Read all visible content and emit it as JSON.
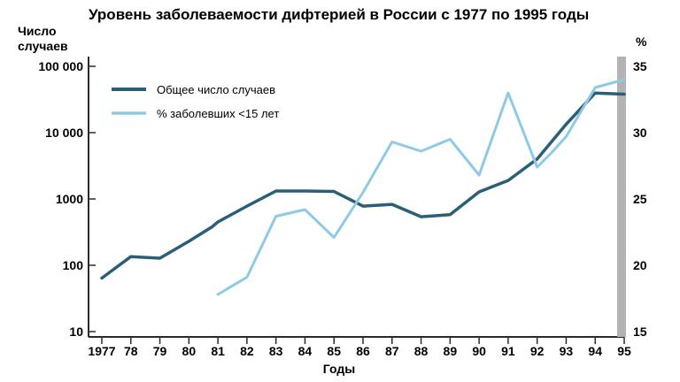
{
  "chart_data": {
    "type": "line",
    "title": "Уровень заболеваемости дифтерией в России с 1977 по 1995 годы",
    "xlabel": "Годы",
    "ylabel_left": "Число\nслучаев",
    "ylabel_right": "%",
    "x_tick_labels": [
      "1977",
      "78",
      "79",
      "80",
      "81",
      "82",
      "83",
      "84",
      "85",
      "86",
      "87",
      "88",
      "89",
      "90",
      "91",
      "92",
      "93",
      "94",
      "95"
    ],
    "xlim": [
      1977,
      1995
    ],
    "y_left": {
      "scale": "log",
      "lim": [
        10,
        100000
      ],
      "ticks": [
        10,
        100,
        1000,
        10000,
        100000
      ],
      "tick_labels": [
        "10",
        "100",
        "1000",
        "10 000",
        "100 000"
      ]
    },
    "y_right": {
      "scale": "linear",
      "lim": [
        15,
        35
      ],
      "ticks": [
        15,
        20,
        25,
        30,
        35
      ],
      "tick_labels": [
        "15",
        "20",
        "25",
        "30",
        "35"
      ]
    },
    "grid": false,
    "legend_position": "top-left",
    "colors": {
      "series_1": "#2b5f78",
      "series_2": "#8ecae6",
      "axis": "#2a2a2a"
    },
    "series": [
      {
        "name": "Общее число случаев",
        "axis": "left",
        "x": [
          1977,
          1978,
          1979,
          1980,
          1980.8,
          1981,
          1982,
          1983,
          1984,
          1985,
          1986,
          1987,
          1988,
          1989,
          1990,
          1991,
          1992,
          1993,
          1994,
          1995
        ],
        "y": [
          64,
          135,
          128,
          230,
          380,
          450,
          780,
          1320,
          1320,
          1300,
          780,
          830,
          540,
          580,
          1280,
          1900,
          4000,
          13400,
          39600,
          38000
        ]
      },
      {
        "name": "% заболевших <15 лет",
        "axis": "right",
        "x": [
          1981,
          1982,
          1983,
          1984,
          1985,
          1986,
          1987,
          1988,
          1989,
          1990,
          1991,
          1992,
          1992.5,
          1993,
          1994,
          1995
        ],
        "y": [
          17.8,
          19.1,
          23.7,
          24.2,
          22.1,
          25.5,
          29.3,
          28.6,
          29.5,
          26.8,
          33.0,
          27.4,
          28.5,
          29.7,
          33.4,
          34.0
        ]
      }
    ]
  }
}
